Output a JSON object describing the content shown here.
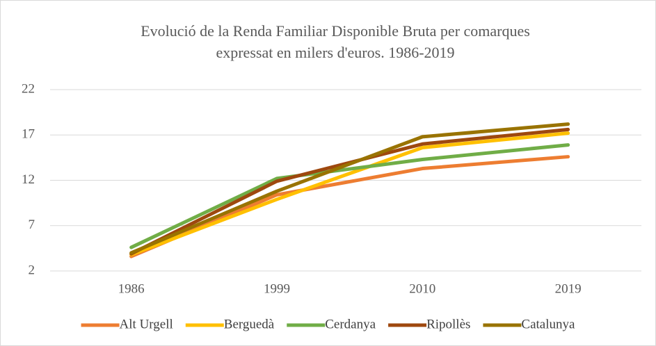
{
  "chart_data": {
    "type": "line",
    "title": [
      "Evolució de la Renda Familiar Disponible Bruta per comarques",
      "expressat en milers d'euros. 1986-2019"
    ],
    "categories": [
      "1986",
      "1999",
      "2010",
      "2019"
    ],
    "series": [
      {
        "name": "Alt Urgell",
        "color": "#ed7d31",
        "values": [
          3.6,
          10.4,
          13.3,
          14.6
        ]
      },
      {
        "name": "Berguedà",
        "color": "#ffc000",
        "values": [
          3.8,
          9.9,
          15.6,
          17.2
        ]
      },
      {
        "name": "Cerdanya",
        "color": "#70ad47",
        "values": [
          4.6,
          12.2,
          14.3,
          15.9
        ]
      },
      {
        "name": "Ripollès",
        "color": "#9e480e",
        "values": [
          3.9,
          11.9,
          16.0,
          17.6
        ]
      },
      {
        "name": "Catalunya",
        "color": "#997300",
        "values": [
          4.0,
          10.8,
          16.8,
          18.2
        ]
      }
    ],
    "ylim": [
      2,
      22
    ],
    "yticks": [
      2,
      7,
      12,
      17,
      22
    ],
    "grid": true,
    "legend": "bottom"
  }
}
